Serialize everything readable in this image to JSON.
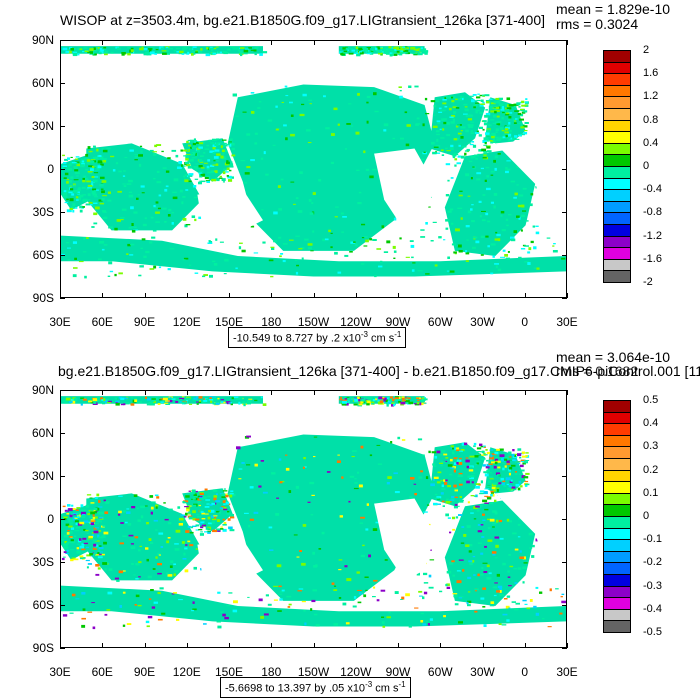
{
  "panels": [
    {
      "title": "WISOP at z=3503.4m, bg.e21.B1850G.f09_g17.LIGtransient_126ka [371-400]",
      "mean": "mean = 1.829e-10",
      "rms": "rms = 0.3024",
      "range_prefix": "-10.549 to 8.727 by .2 x10",
      "range_exp": "-3",
      "range_unit": " cm s",
      "range_unit_exp": "-1",
      "colorbar_labels": [
        "2",
        "1.6",
        "1.2",
        "0.8",
        "0.4",
        "0",
        "-0.4",
        "-0.8",
        "-1.2",
        "-1.6",
        "-2"
      ]
    },
    {
      "title": "bg.e21.B1850G.f09_g17.LIGtransient_126ka [371-400] - b.e21.B1850.f09_g17.CMIP6-piControl.001 [11",
      "mean": "mean = 3.064e-10",
      "rms": "rms = 0.1682",
      "range_prefix": "-5.6698 to 13.397 by .05 x10",
      "range_exp": "-3",
      "range_unit": " cm s",
      "range_unit_exp": "-1",
      "colorbar_labels": [
        "0.5",
        "0.4",
        "0.3",
        "0.2",
        "0.1",
        "0",
        "-0.1",
        "-0.2",
        "-0.3",
        "-0.4",
        "-0.5"
      ]
    }
  ],
  "lat_labels": [
    "90N",
    "60N",
    "30N",
    "0",
    "30S",
    "60S",
    "90S"
  ],
  "lon_labels": [
    "30E",
    "60E",
    "90E",
    "120E",
    "150E",
    "180",
    "150W",
    "120W",
    "90W",
    "60W",
    "30W",
    "0",
    "30E"
  ],
  "colorbar_colors": [
    "#a00000",
    "#e00000",
    "#ff3c00",
    "#ff7800",
    "#ff9a30",
    "#ffb84a",
    "#ffd400",
    "#ffff00",
    "#7cfc00",
    "#00c800",
    "#00f0a0",
    "#00ffff",
    "#00d0ff",
    "#009cff",
    "#0064ff",
    "#0000e0",
    "#8c00c8",
    "#e000e0",
    "#c8c8c8",
    "#646464"
  ],
  "chart_data": [
    {
      "type": "heatmap",
      "title": "WISOP at z=3503.4m, bg.e21.B1850G.f09_g17.LIGtransient_126ka [371-400]",
      "ylabel": "",
      "xlabel": "",
      "xlim": [
        "30E",
        "30E"
      ],
      "ylim": [
        "90S",
        "90N"
      ],
      "color_levels": [
        -2,
        -1.8,
        -1.6,
        -1.4,
        -1.2,
        -1.0,
        -0.8,
        -0.6,
        -0.4,
        -0.2,
        0,
        0.2,
        0.4,
        0.6,
        0.8,
        1.0,
        1.2,
        1.4,
        1.6,
        1.8,
        2
      ],
      "data_range": [
        -10.549,
        8.727
      ],
      "mean": 1.829e-10,
      "rms": 0.3024
    },
    {
      "type": "heatmap",
      "title": "bg.e21.B1850G.f09_g17.LIGtransient_126ka [371-400] - b.e21.B1850.f09_g17.CMIP6-piControl.001 [11",
      "ylabel": "",
      "xlabel": "",
      "xlim": [
        "30E",
        "30E"
      ],
      "ylim": [
        "90S",
        "90N"
      ],
      "color_levels": [
        -0.5,
        -0.45,
        -0.4,
        -0.35,
        -0.3,
        -0.25,
        -0.2,
        -0.15,
        -0.1,
        -0.05,
        0,
        0.05,
        0.1,
        0.15,
        0.2,
        0.25,
        0.3,
        0.35,
        0.4,
        0.45,
        0.5
      ],
      "data_range": [
        -5.6698,
        13.397
      ],
      "mean": 3.064e-10,
      "rms": 0.1682
    }
  ]
}
